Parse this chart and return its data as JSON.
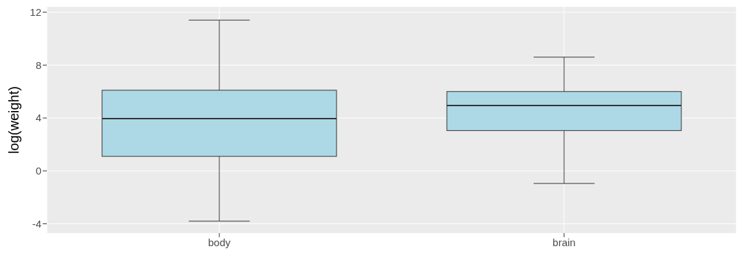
{
  "chart_data": {
    "type": "box",
    "ylabel": "log(weight)",
    "categories": [
      "body",
      "brain"
    ],
    "color": "#add8e6",
    "boxes": [
      {
        "low": -3.8,
        "q1": 1.1,
        "median": 3.95,
        "q3": 6.1,
        "high": 11.4
      },
      {
        "low": -0.95,
        "q1": 3.05,
        "median": 4.95,
        "q3": 6.0,
        "high": 8.6
      }
    ],
    "ylim": [
      -4.7,
      12.4
    ],
    "yticks": [
      -4,
      0,
      4,
      8,
      12
    ],
    "grid": true
  }
}
